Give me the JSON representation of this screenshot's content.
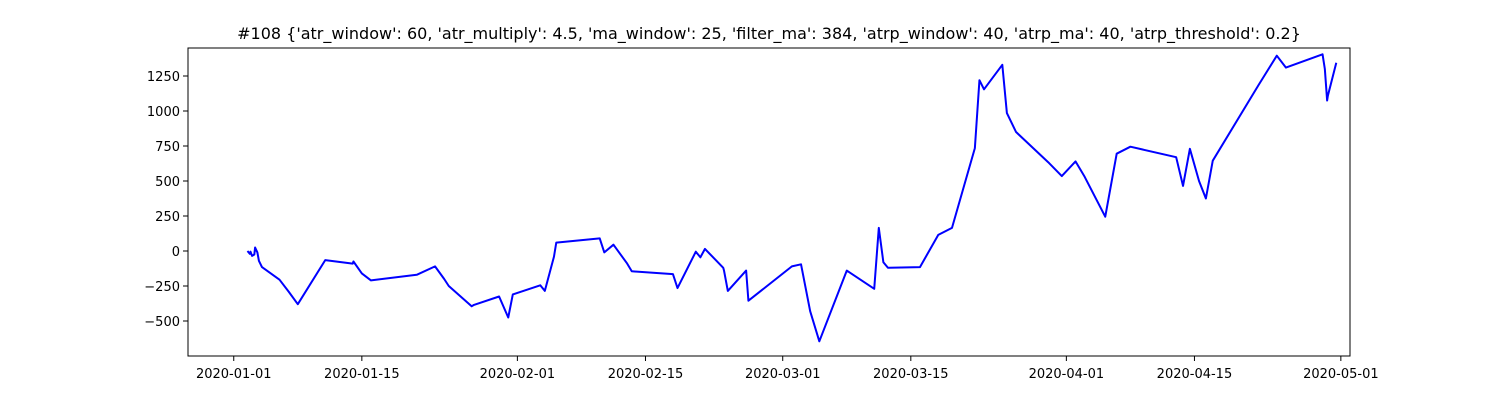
{
  "chart_data": {
    "type": "line",
    "title": "#108 {'atr_window': 60, 'atr_multiply': 4.5, 'ma_window': 25, 'filter_ma': 384, 'atrp_window': 40, 'atrp_ma': 40, 'atrp_threshold': 0.2}",
    "xlabel": "",
    "ylabel": "",
    "grid": false,
    "legend": "none",
    "xlim": [
      "2019-12-27",
      "2020-05-02"
    ],
    "ylim": [
      -750,
      1450
    ],
    "x_ticks": [
      "2020-01-01",
      "2020-01-15",
      "2020-02-01",
      "2020-02-15",
      "2020-03-01",
      "2020-03-15",
      "2020-04-01",
      "2020-04-15",
      "2020-05-01"
    ],
    "x_tick_labels": [
      "2020-01-01",
      "2020-01-15",
      "2020-02-01",
      "2020-02-15",
      "2020-03-01",
      "2020-03-15",
      "2020-04-01",
      "2020-04-15",
      "2020-05-01"
    ],
    "y_ticks": [
      -500,
      -250,
      0,
      250,
      500,
      750,
      1000,
      1250
    ],
    "y_tick_labels": [
      "−500",
      "−250",
      "0",
      "250",
      "500",
      "750",
      "1000",
      "1250"
    ],
    "series": [
      {
        "color": "#0000ff",
        "points": [
          [
            "2020-01-02 12:00",
            0
          ],
          [
            "2020-01-02 18:00",
            -20
          ],
          [
            "2020-01-02 20:00",
            -5
          ],
          [
            "2020-01-03 00:00",
            -35
          ],
          [
            "2020-01-03 06:00",
            -25
          ],
          [
            "2020-01-03 08:00",
            25
          ],
          [
            "2020-01-03 14:00",
            -10
          ],
          [
            "2020-01-03 18:00",
            -70
          ],
          [
            "2020-01-04 02:00",
            -115
          ],
          [
            "2020-01-06 00:00",
            -205
          ],
          [
            "2020-01-07 00:00",
            -290
          ],
          [
            "2020-01-08 00:00",
            -380
          ],
          [
            "2020-01-11 00:00",
            -65
          ],
          [
            "2020-01-14 00:00",
            -90
          ],
          [
            "2020-01-14 02:00",
            -75
          ],
          [
            "2020-01-15 00:00",
            -160
          ],
          [
            "2020-01-16 00:00",
            -210
          ],
          [
            "2020-01-21 00:00",
            -170
          ],
          [
            "2020-01-23 00:00",
            -110
          ],
          [
            "2020-01-24 00:00",
            -200
          ],
          [
            "2020-01-24 12:00",
            -250
          ],
          [
            "2020-01-27 00:00",
            -395
          ],
          [
            "2020-01-27 06:00",
            -385
          ],
          [
            "2020-01-30 00:00",
            -325
          ],
          [
            "2020-01-31 00:00",
            -475
          ],
          [
            "2020-01-31 12:00",
            -310
          ],
          [
            "2020-02-03 12:00",
            -245
          ],
          [
            "2020-02-04 00:00",
            -285
          ],
          [
            "2020-02-05 00:00",
            -40
          ],
          [
            "2020-02-05 06:00",
            60
          ],
          [
            "2020-02-10 00:00",
            90
          ],
          [
            "2020-02-10 12:00",
            -10
          ],
          [
            "2020-02-11 12:00",
            45
          ],
          [
            "2020-02-13 00:00",
            -90
          ],
          [
            "2020-02-13 12:00",
            -145
          ],
          [
            "2020-02-18 00:00",
            -165
          ],
          [
            "2020-02-18 12:00",
            -265
          ],
          [
            "2020-02-20 12:00",
            -5
          ],
          [
            "2020-02-21 00:00",
            -45
          ],
          [
            "2020-02-21 12:00",
            15
          ],
          [
            "2020-02-23 12:00",
            -120
          ],
          [
            "2020-02-23 14:00",
            -140
          ],
          [
            "2020-02-24 00:00",
            -285
          ],
          [
            "2020-02-26 00:00",
            -140
          ],
          [
            "2020-02-26 06:00",
            -355
          ],
          [
            "2020-03-02 00:00",
            -110
          ],
          [
            "2020-03-03 00:00",
            -95
          ],
          [
            "2020-03-04 00:00",
            -430
          ],
          [
            "2020-03-05 00:00",
            -645
          ],
          [
            "2020-03-08 00:00",
            -140
          ],
          [
            "2020-03-11 00:00",
            -270
          ],
          [
            "2020-03-11 12:00",
            165
          ],
          [
            "2020-03-12 00:00",
            -80
          ],
          [
            "2020-03-12 12:00",
            -120
          ],
          [
            "2020-03-16 00:00",
            -115
          ],
          [
            "2020-03-18 00:00",
            115
          ],
          [
            "2020-03-19 12:00",
            165
          ],
          [
            "2020-03-22 00:00",
            735
          ],
          [
            "2020-03-22 12:00",
            1220
          ],
          [
            "2020-03-23 00:00",
            1155
          ],
          [
            "2020-03-25 00:00",
            1330
          ],
          [
            "2020-03-25 12:00",
            985
          ],
          [
            "2020-03-26 12:00",
            850
          ],
          [
            "2020-03-30 00:00",
            635
          ],
          [
            "2020-03-31 12:00",
            535
          ],
          [
            "2020-04-02 00:00",
            640
          ],
          [
            "2020-04-03 00:00",
            530
          ],
          [
            "2020-04-05 06:00",
            245
          ],
          [
            "2020-04-06 12:00",
            695
          ],
          [
            "2020-04-08 00:00",
            745
          ],
          [
            "2020-04-13 00:00",
            670
          ],
          [
            "2020-04-13 18:00",
            465
          ],
          [
            "2020-04-14 12:00",
            730
          ],
          [
            "2020-04-15 12:00",
            500
          ],
          [
            "2020-04-16 06:00",
            375
          ],
          [
            "2020-04-17 00:00",
            645
          ],
          [
            "2020-04-22 00:00",
            1185
          ],
          [
            "2020-04-24 00:00",
            1395
          ],
          [
            "2020-04-25 00:00",
            1310
          ],
          [
            "2020-04-29 00:00",
            1405
          ],
          [
            "2020-04-29 06:00",
            1300
          ],
          [
            "2020-04-29 12:00",
            1075
          ],
          [
            "2020-04-29 14:00",
            1110
          ],
          [
            "2020-04-30 12:00",
            1345
          ]
        ]
      }
    ]
  }
}
